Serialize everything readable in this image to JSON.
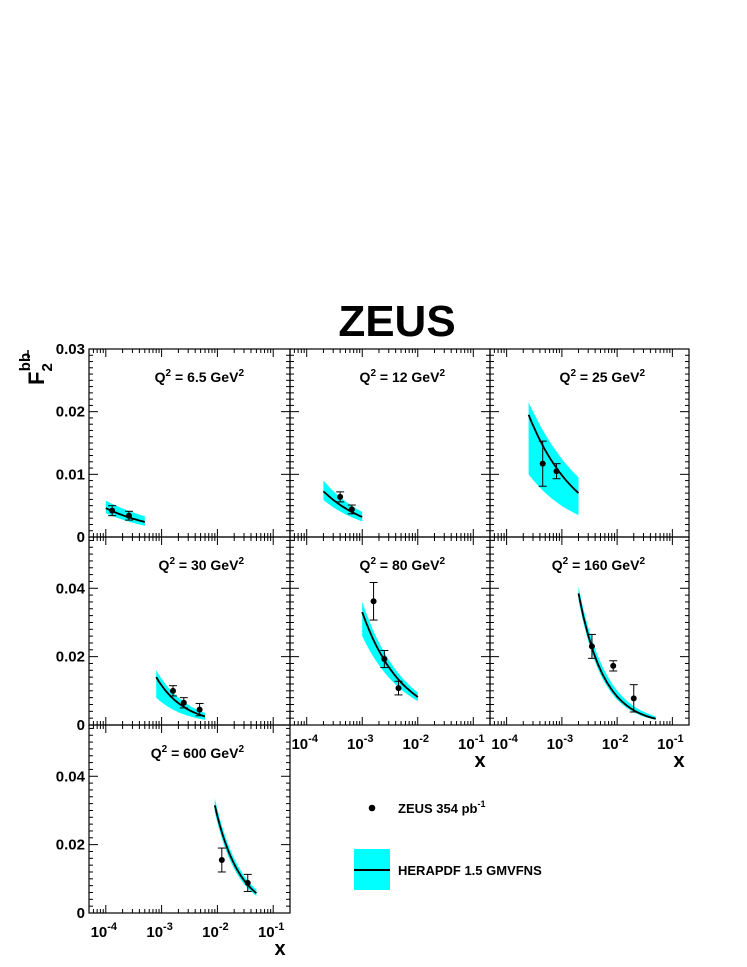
{
  "title": "ZEUS",
  "y_axis": {
    "label": "F",
    "sub": "2",
    "sup": "bb"
  },
  "x_axis_label": "x",
  "legend": {
    "data": "ZEUS 354 pb",
    "data_sup": "-1",
    "theory": "HERAPDF 1.5 GMVFNS"
  },
  "colors": {
    "band": "#00ffff",
    "line": "#000000",
    "point": "#000000"
  },
  "chart_data": {
    "type": "scatter",
    "xscale": "log",
    "xlim": [
      5e-05,
      0.2
    ],
    "grid": false,
    "panels": [
      {
        "q2": "6.5",
        "ylim": [
          0,
          0.03
        ],
        "yticks": [
          "0",
          "0.01",
          "0.02",
          "0.03"
        ],
        "points": [
          {
            "x": 0.00013,
            "y": 0.0042,
            "err": 0.0008
          },
          {
            "x": 0.00026,
            "y": 0.0034,
            "err": 0.0007
          }
        ],
        "theory": {
          "x": [
            0.0001,
            0.0005
          ],
          "y": [
            0.0046,
            0.0024
          ],
          "band_lo": [
            0.0038,
            0.0018
          ],
          "band_hi": [
            0.0058,
            0.0033
          ]
        }
      },
      {
        "q2": "12",
        "ylim": [
          0,
          0.03
        ],
        "yticks": [],
        "points": [
          {
            "x": 0.0004,
            "y": 0.0064,
            "err": 0.0008
          },
          {
            "x": 0.00065,
            "y": 0.0044,
            "err": 0.0007
          }
        ],
        "theory": {
          "x": [
            0.0002,
            0.001
          ],
          "y": [
            0.0073,
            0.0032
          ],
          "band_lo": [
            0.0059,
            0.0025
          ],
          "band_hi": [
            0.009,
            0.004
          ]
        }
      },
      {
        "q2": "25",
        "ylim": [
          0,
          0.03
        ],
        "yticks": [],
        "points": [
          {
            "x": 0.00045,
            "y": 0.0117,
            "err": 0.0036
          },
          {
            "x": 0.0008,
            "y": 0.0105,
            "err": 0.0012
          }
        ],
        "theory": {
          "x": [
            0.00025,
            0.002
          ],
          "y": [
            0.0195,
            0.007
          ],
          "band_lo": [
            0.01,
            0.0035
          ],
          "band_hi": [
            0.0215,
            0.0095
          ]
        }
      },
      {
        "q2": "30",
        "ylim": [
          0,
          0.055
        ],
        "yticks": [
          "0",
          "0.02",
          "0.04"
        ],
        "points": [
          {
            "x": 0.0016,
            "y": 0.01,
            "err": 0.0015
          },
          {
            "x": 0.0025,
            "y": 0.0065,
            "err": 0.0015
          },
          {
            "x": 0.0048,
            "y": 0.0045,
            "err": 0.0018
          }
        ],
        "theory": {
          "x": [
            0.0008,
            0.006
          ],
          "y": [
            0.014,
            0.0025
          ],
          "band_lo": [
            0.008,
            0.0015
          ],
          "band_hi": [
            0.016,
            0.0035
          ]
        }
      },
      {
        "q2": "80",
        "ylim": [
          0,
          0.055
        ],
        "yticks": [],
        "points": [
          {
            "x": 0.0016,
            "y": 0.0362,
            "err": 0.0055
          },
          {
            "x": 0.0025,
            "y": 0.0193,
            "err": 0.0025
          },
          {
            "x": 0.0045,
            "y": 0.0108,
            "err": 0.002
          }
        ],
        "theory": {
          "x": [
            0.001,
            0.01
          ],
          "y": [
            0.033,
            0.0082
          ],
          "band_lo": [
            0.026,
            0.007
          ],
          "band_hi": [
            0.036,
            0.0095
          ]
        }
      },
      {
        "q2": "160",
        "ylim": [
          0,
          0.055
        ],
        "yticks": [],
        "points": [
          {
            "x": 0.0035,
            "y": 0.023,
            "err": 0.0035
          },
          {
            "x": 0.0085,
            "y": 0.0173,
            "err": 0.0015
          },
          {
            "x": 0.02,
            "y": 0.0078,
            "err": 0.004
          }
        ],
        "theory": {
          "x": [
            0.002,
            0.05
          ],
          "y": [
            0.0385,
            0.0018
          ],
          "band_lo": [
            0.0365,
            0.0015
          ],
          "band_hi": [
            0.0405,
            0.0025
          ]
        }
      },
      {
        "q2": "600",
        "ylim": [
          0,
          0.055
        ],
        "yticks": [
          "0",
          "0.02",
          "0.04"
        ],
        "points": [
          {
            "x": 0.012,
            "y": 0.0155,
            "err": 0.0035
          },
          {
            "x": 0.035,
            "y": 0.0088,
            "err": 0.0025
          }
        ],
        "theory": {
          "x": [
            0.009,
            0.05
          ],
          "y": [
            0.0315,
            0.0058
          ],
          "band_lo": [
            0.0295,
            0.005
          ],
          "band_hi": [
            0.0335,
            0.0068
          ]
        }
      }
    ],
    "xtick_labels": [
      {
        "base": "10",
        "exp": "-4"
      },
      {
        "base": "10",
        "exp": "-3"
      },
      {
        "base": "10",
        "exp": "-2"
      },
      {
        "base": "10",
        "exp": "-1"
      }
    ],
    "q2_prefix": "Q",
    "q2_unit": "GeV"
  }
}
